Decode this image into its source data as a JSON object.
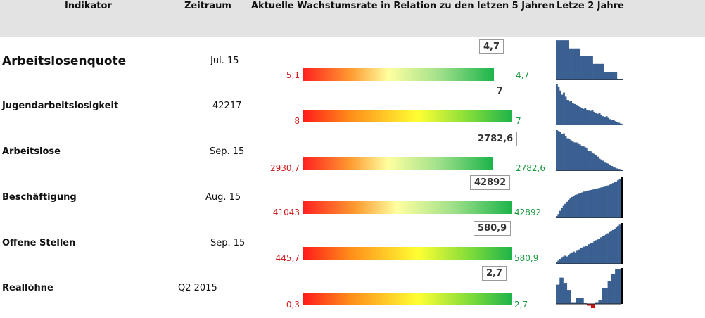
{
  "header": {
    "col_indicator": "Indikator",
    "col_period": "Zeitraum",
    "col_rate": "Aktuelle Wachstumsrate in Relation zu den letzen 5 Jahren",
    "col_spark": "Letze 2 Jahre"
  },
  "colors": {
    "bar": "#3a5f91",
    "negative": "#cc1111",
    "marker": "#000000",
    "low": "#d01818",
    "high": "#1a9a3c"
  },
  "rows": [
    {
      "name": "Arbeitslosenquote",
      "period": "Jul. 15",
      "low": "5,1",
      "high": "4,7",
      "current": "4,7",
      "fill": 0.99,
      "spark": [
        0.98,
        0.98,
        0.98,
        0.98,
        0.98,
        0.98,
        0.98,
        0.98,
        0.78,
        0.78,
        0.78,
        0.78,
        0.78,
        0.78,
        0.78,
        0.6,
        0.6,
        0.6,
        0.6,
        0.6,
        0.6,
        0.6,
        0.6,
        0.4,
        0.4,
        0.4,
        0.4,
        0.4,
        0.4,
        0.4,
        0.2,
        0.2,
        0.2,
        0.2,
        0.2,
        0.2,
        0.2,
        0.2,
        0.03,
        0.03,
        0.03,
        0.03
      ],
      "marker": false
    },
    {
      "name": "Jugendarbeitslosigkeit",
      "period": "42217",
      "low": "8",
      "high": "7",
      "current": "7",
      "fill": 1.0,
      "spark": [
        1.0,
        0.95,
        0.85,
        0.75,
        0.8,
        0.7,
        0.62,
        0.58,
        0.6,
        0.55,
        0.52,
        0.5,
        0.47,
        0.45,
        0.42,
        0.4,
        0.42,
        0.38,
        0.36,
        0.35,
        0.37,
        0.33,
        0.3,
        0.28,
        0.3,
        0.26,
        0.22,
        0.2,
        0.22,
        0.18,
        0.15,
        0.13,
        0.12,
        0.1,
        0.08,
        0.06,
        0.04,
        0.03
      ],
      "marker": false
    },
    {
      "name": "Arbeitslose",
      "period": "Sep. 15",
      "low": "2930,7",
      "high": "2782,6",
      "current": "2782,6",
      "fill": 1.0,
      "spark": [
        1.0,
        0.98,
        0.95,
        0.9,
        0.92,
        0.85,
        0.8,
        0.78,
        0.75,
        0.72,
        0.7,
        0.7,
        0.68,
        0.65,
        0.62,
        0.6,
        0.58,
        0.55,
        0.5,
        0.48,
        0.45,
        0.42,
        0.38,
        0.35,
        0.3,
        0.28,
        0.25,
        0.22,
        0.2,
        0.18,
        0.15,
        0.12,
        0.1,
        0.08,
        0.06,
        0.05,
        0.04,
        0.03
      ],
      "marker": false
    },
    {
      "name": "Beschäftigung",
      "period": "Aug. 15",
      "low": "41043",
      "high": "42892",
      "current": "42892",
      "fill": 1.0,
      "spark": [
        0.05,
        0.1,
        0.18,
        0.25,
        0.3,
        0.35,
        0.4,
        0.45,
        0.48,
        0.52,
        0.55,
        0.57,
        0.58,
        0.6,
        0.62,
        0.63,
        0.65,
        0.66,
        0.67,
        0.68,
        0.69,
        0.7,
        0.71,
        0.72,
        0.73,
        0.74,
        0.75,
        0.76,
        0.77,
        0.78,
        0.8,
        0.82,
        0.84,
        0.86,
        0.88,
        0.9,
        0.93,
        0.96
      ],
      "marker": true
    },
    {
      "name": "Offene Stellen",
      "period": "Sep. 15",
      "low": "445,7",
      "high": "580,9",
      "current": "580,9",
      "fill": 1.0,
      "spark": [
        0.05,
        0.08,
        0.12,
        0.15,
        0.18,
        0.2,
        0.18,
        0.22,
        0.25,
        0.28,
        0.3,
        0.28,
        0.32,
        0.35,
        0.38,
        0.4,
        0.42,
        0.45,
        0.43,
        0.48,
        0.5,
        0.52,
        0.55,
        0.58,
        0.6,
        0.62,
        0.65,
        0.68,
        0.7,
        0.72,
        0.75,
        0.78,
        0.8,
        0.83,
        0.86,
        0.9,
        0.93,
        0.96
      ],
      "marker": true
    },
    {
      "name": "Reallöhne",
      "period": "Q2 2015",
      "low": "-0,3",
      "high": "2,7",
      "current": "2,7",
      "fill": 1.0,
      "spark": [
        0.55,
        0.55,
        0.75,
        0.75,
        0.6,
        0.6,
        0.4,
        0.4,
        0.05,
        0.05,
        0.05,
        0.18,
        0.18,
        0.18,
        0.18,
        0.04,
        0.04,
        -0.05,
        -0.05,
        -0.12,
        -0.12,
        0.05,
        0.05,
        0.1,
        0.1,
        0.45,
        0.45,
        0.45,
        0.65,
        0.65,
        0.85,
        0.85,
        1.0,
        1.0,
        1.0
      ],
      "marker": true
    }
  ]
}
